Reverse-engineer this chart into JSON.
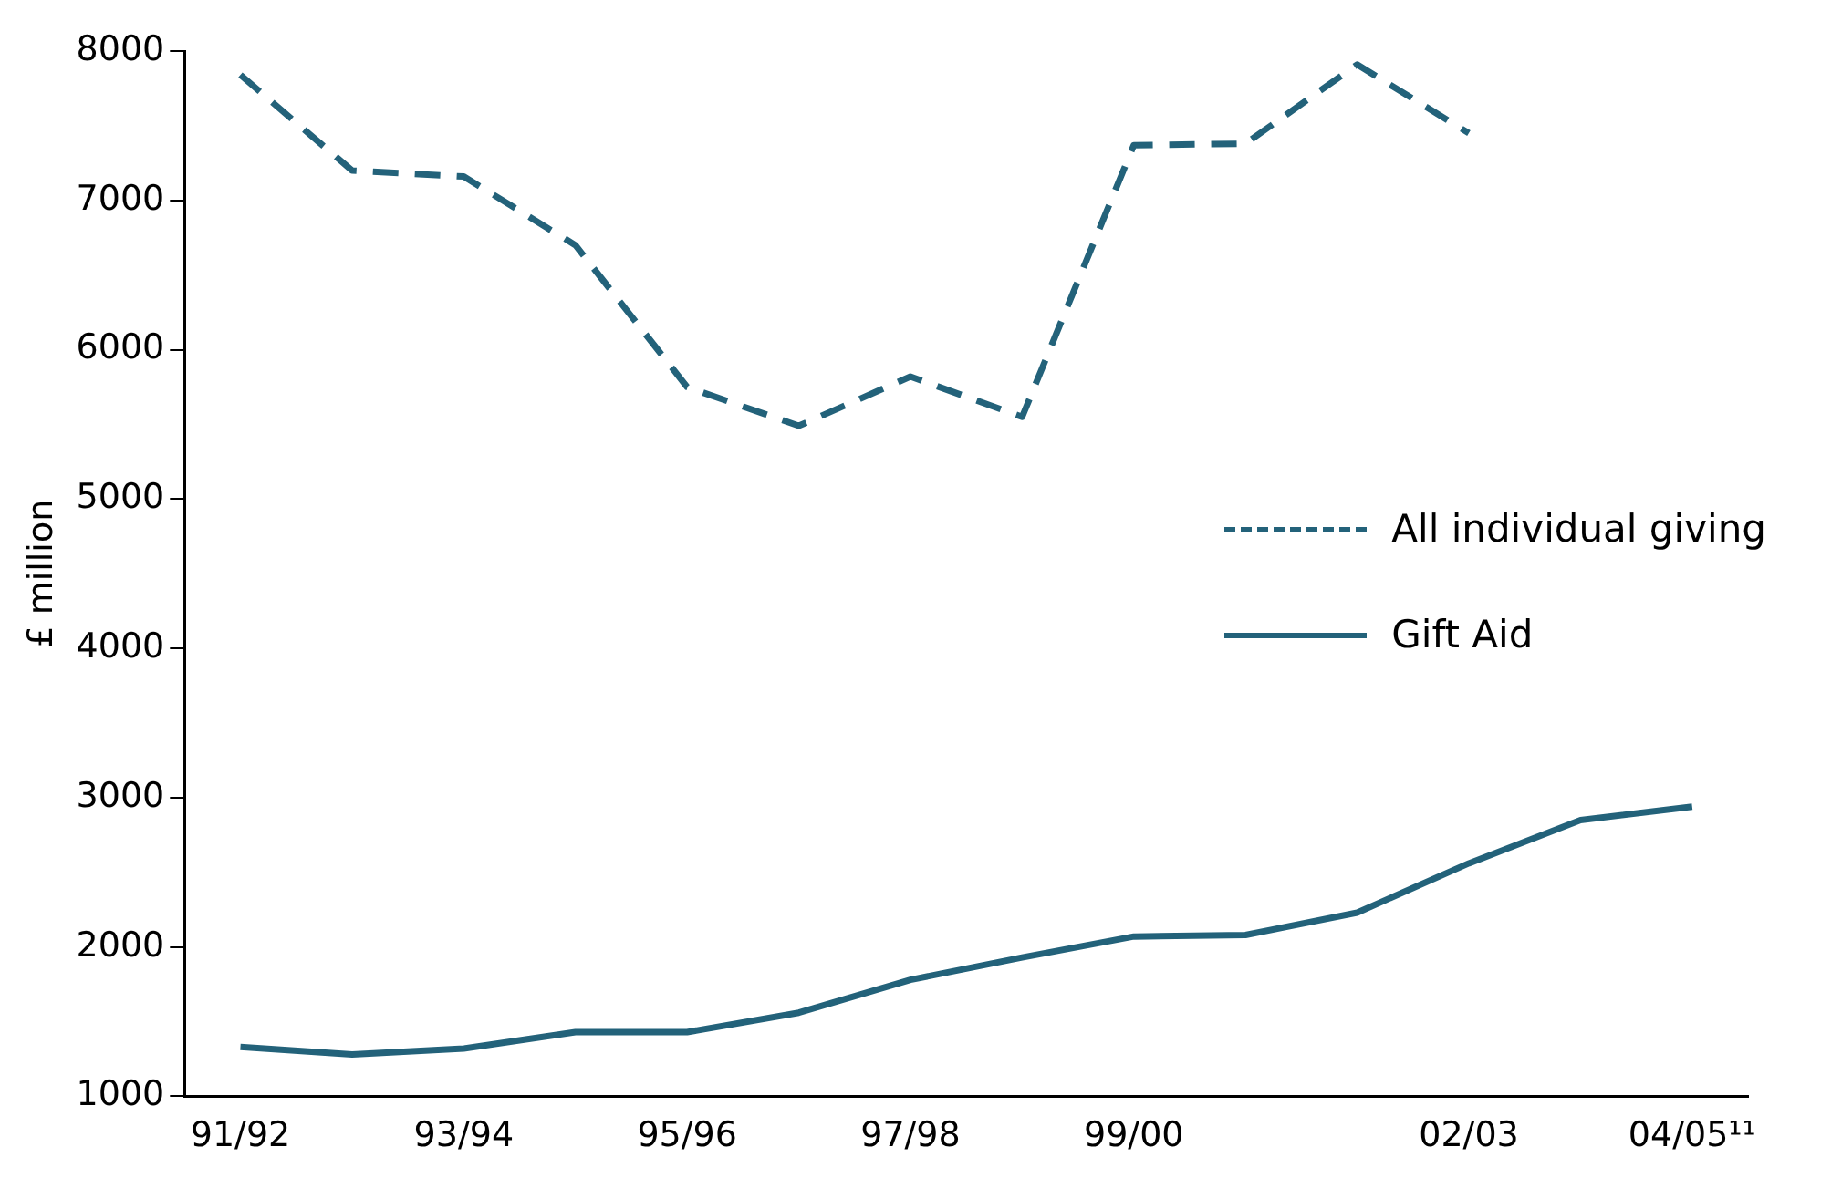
{
  "chart_data": {
    "type": "line",
    "ylabel": "£ million",
    "categories": [
      "91/92",
      null,
      "93/94",
      null,
      "95/96",
      null,
      "97/98",
      null,
      "99/00",
      null,
      null,
      "02/03",
      null,
      "04/05¹¹"
    ],
    "series": [
      {
        "name": "All individual giving",
        "color": "#23627a",
        "line_style": "dashed",
        "values": [
          7840,
          7200,
          7160,
          6700,
          5750,
          5490,
          5820,
          5550,
          7370,
          7380,
          7910,
          7450,
          null,
          null
        ]
      },
      {
        "name": "Gift Aid",
        "color": "#23627a",
        "line_style": "solid",
        "values": [
          1330,
          1280,
          1320,
          1430,
          1430,
          1560,
          1780,
          1930,
          2070,
          2080,
          2230,
          2560,
          2850,
          2940
        ]
      }
    ],
    "ylim": [
      1000,
      8000
    ],
    "yticks": [
      1000,
      2000,
      3000,
      4000,
      5000,
      6000,
      7000,
      8000
    ],
    "grid": false,
    "legend": "right",
    "marker": "none"
  }
}
